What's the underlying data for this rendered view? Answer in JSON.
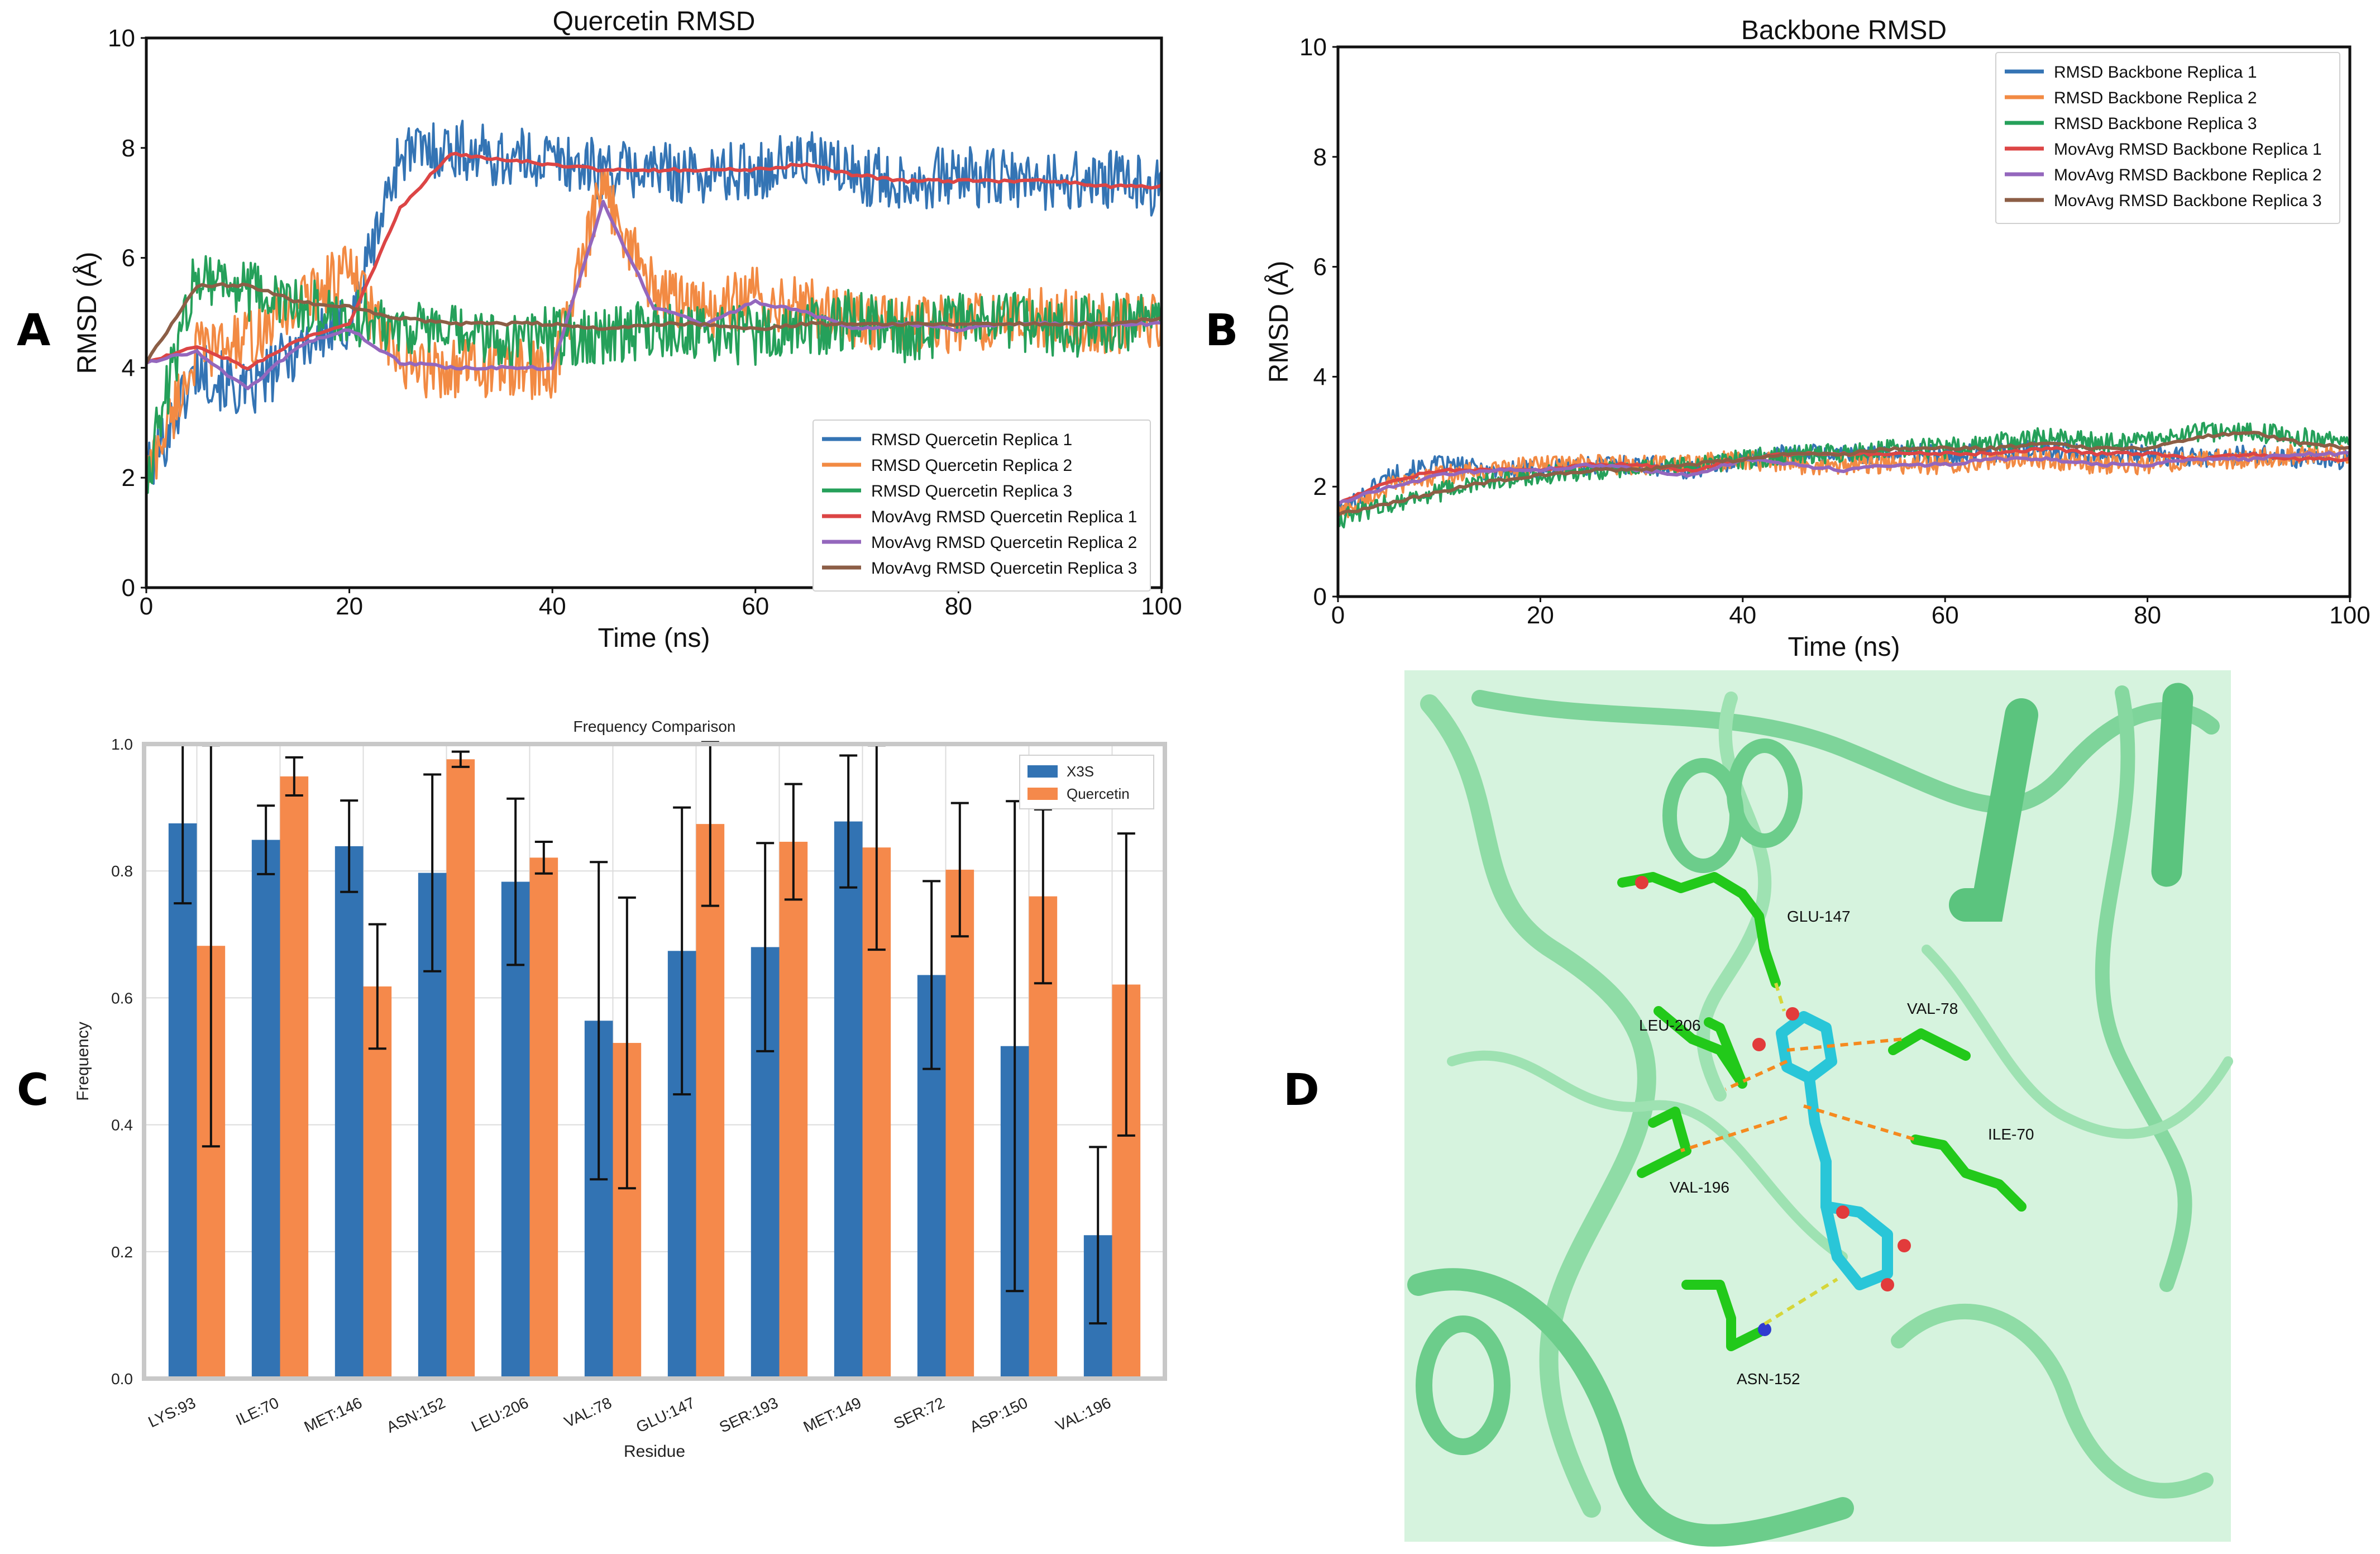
{
  "panels": {
    "A": "A",
    "B": "B",
    "C": "C",
    "D": "D"
  },
  "chart_data": [
    {
      "panel": "A",
      "type": "line",
      "title": "Quercetin  RMSD",
      "xlabel": "Time (ns)",
      "ylabel": "RMSD (Å)",
      "xlim": [
        0,
        100
      ],
      "ylim": [
        0,
        10
      ],
      "xticks": [
        "0",
        "20",
        "40",
        "60",
        "80",
        "100"
      ],
      "yticks": [
        "0",
        "2",
        "4",
        "6",
        "8",
        "10"
      ],
      "grid": false,
      "legend_position": "lower-right",
      "x": [
        0,
        5,
        10,
        15,
        20,
        25,
        30,
        35,
        40,
        45,
        50,
        55,
        60,
        65,
        70,
        75,
        80,
        85,
        90,
        95,
        100
      ],
      "series": [
        {
          "name": "RMSD Quercetin Replica 1",
          "color": "#3474b4",
          "values": [
            2.0,
            4.0,
            3.5,
            4.4,
            4.8,
            7.9,
            8.0,
            7.8,
            7.8,
            7.6,
            7.6,
            7.5,
            7.6,
            7.8,
            7.5,
            7.4,
            7.5,
            7.4,
            7.4,
            7.4,
            7.3
          ]
        },
        {
          "name": "RMSD Quercetin Replica 2",
          "color": "#f28a43",
          "values": [
            2.0,
            4.3,
            4.5,
            5.2,
            5.8,
            4.0,
            4.0,
            4.0,
            3.9,
            7.3,
            5.4,
            5.0,
            5.3,
            5.1,
            4.9,
            4.8,
            4.8,
            4.9,
            4.9,
            4.8,
            4.9
          ]
        },
        {
          "name": "RMSD Quercetin Replica 3",
          "color": "#25a05a",
          "values": [
            2.0,
            5.8,
            5.4,
            5.1,
            4.9,
            4.8,
            4.6,
            4.5,
            4.6,
            4.6,
            4.7,
            4.6,
            4.6,
            4.7,
            4.9,
            4.6,
            4.8,
            4.9,
            4.7,
            4.8,
            4.9
          ]
        },
        {
          "name": "MovAvg RMSD Quercetin Replica 1",
          "color": "#dc4545",
          "values": [
            4.1,
            4.4,
            4.0,
            4.5,
            4.8,
            6.9,
            7.9,
            7.8,
            7.7,
            7.6,
            7.6,
            7.6,
            7.6,
            7.7,
            7.5,
            7.4,
            7.4,
            7.4,
            7.4,
            7.3,
            7.3
          ]
        },
        {
          "name": "MovAvg RMSD Quercetin Replica 2",
          "color": "#9467bd",
          "values": [
            4.1,
            4.3,
            3.6,
            4.4,
            4.7,
            4.1,
            4.0,
            4.0,
            4.0,
            7.0,
            5.1,
            4.8,
            5.2,
            5.0,
            4.7,
            4.8,
            4.7,
            4.8,
            4.8,
            4.8,
            4.8
          ]
        },
        {
          "name": "MovAvg RMSD Quercetin Replica 3",
          "color": "#8c5e46",
          "values": [
            4.1,
            5.5,
            5.5,
            5.2,
            5.1,
            4.9,
            4.8,
            4.8,
            4.8,
            4.7,
            4.8,
            4.8,
            4.7,
            4.8,
            4.8,
            4.8,
            4.8,
            4.8,
            4.8,
            4.8,
            4.9
          ]
        }
      ]
    },
    {
      "panel": "B",
      "type": "line",
      "title": "Backbone RMSD",
      "xlabel": "Time (ns)",
      "ylabel": "RMSD (Å)",
      "xlim": [
        0,
        100
      ],
      "ylim": [
        0,
        10
      ],
      "xticks": [
        "0",
        "20",
        "40",
        "60",
        "80",
        "100"
      ],
      "yticks": [
        "0",
        "2",
        "4",
        "6",
        "8",
        "10"
      ],
      "grid": false,
      "legend_position": "upper-right",
      "x": [
        0,
        5,
        10,
        15,
        20,
        25,
        30,
        35,
        40,
        45,
        50,
        55,
        60,
        65,
        70,
        75,
        80,
        85,
        90,
        95,
        100
      ],
      "series": [
        {
          "name": "RMSD Backbone Replica 1",
          "color": "#3474b4",
          "values": [
            1.5,
            2.2,
            2.4,
            2.3,
            2.3,
            2.4,
            2.4,
            2.3,
            2.5,
            2.6,
            2.6,
            2.6,
            2.6,
            2.6,
            2.7,
            2.6,
            2.6,
            2.5,
            2.6,
            2.5,
            2.5
          ]
        },
        {
          "name": "RMSD Backbone Replica 2",
          "color": "#f28a43",
          "values": [
            1.5,
            2.0,
            2.2,
            2.3,
            2.4,
            2.4,
            2.4,
            2.4,
            2.5,
            2.4,
            2.4,
            2.4,
            2.4,
            2.5,
            2.5,
            2.4,
            2.4,
            2.5,
            2.5,
            2.6,
            2.6
          ]
        },
        {
          "name": "RMSD Backbone Replica 3",
          "color": "#25a05a",
          "values": [
            1.4,
            1.7,
            1.9,
            2.1,
            2.2,
            2.3,
            2.3,
            2.4,
            2.5,
            2.6,
            2.6,
            2.7,
            2.7,
            2.8,
            2.9,
            2.8,
            2.8,
            3.0,
            3.0,
            2.9,
            2.8
          ]
        },
        {
          "name": "MovAvg RMSD Backbone Replica 1",
          "color": "#dc4545",
          "values": [
            1.7,
            2.1,
            2.3,
            2.3,
            2.3,
            2.4,
            2.4,
            2.3,
            2.5,
            2.6,
            2.6,
            2.6,
            2.6,
            2.6,
            2.7,
            2.6,
            2.6,
            2.5,
            2.6,
            2.5,
            2.5
          ]
        },
        {
          "name": "MovAvg RMSD Backbone Replica 2",
          "color": "#9467bd",
          "values": [
            1.7,
            2.0,
            2.2,
            2.3,
            2.3,
            2.4,
            2.3,
            2.2,
            2.5,
            2.4,
            2.3,
            2.4,
            2.4,
            2.5,
            2.5,
            2.4,
            2.4,
            2.5,
            2.5,
            2.6,
            2.6
          ]
        },
        {
          "name": "MovAvg RMSD Backbone Replica 3",
          "color": "#8c5e46",
          "values": [
            1.5,
            1.7,
            1.9,
            2.1,
            2.2,
            2.3,
            2.3,
            2.4,
            2.5,
            2.6,
            2.6,
            2.7,
            2.7,
            2.7,
            2.8,
            2.7,
            2.7,
            2.9,
            3.0,
            2.8,
            2.7
          ]
        }
      ]
    },
    {
      "panel": "C",
      "type": "bar",
      "title": "Frequency Comparison",
      "xlabel": "Residue",
      "ylabel": "Frequency",
      "ylim": [
        0,
        1.0
      ],
      "yticks": [
        "0.0",
        "0.2",
        "0.4",
        "0.6",
        "0.8",
        "1.0"
      ],
      "grid": true,
      "legend_position": "upper-right",
      "categories": [
        "LYS:93",
        "ILE:70",
        "MET:146",
        "ASN:152",
        "LEU:206",
        "VAL:78",
        "GLU:147",
        "SER:193",
        "MET:149",
        "SER:72",
        "ASP:150",
        "VAL:196"
      ],
      "series": [
        {
          "name": "X3S",
          "color": "#3273b3",
          "values": [
            0.875,
            0.849,
            0.839,
            0.797,
            0.783,
            0.564,
            0.674,
            0.68,
            0.878,
            0.636,
            0.524,
            0.226
          ],
          "errors": [
            0.126,
            0.054,
            0.072,
            0.155,
            0.131,
            0.25,
            0.226,
            0.164,
            0.104,
            0.148,
            0.386,
            0.139
          ]
        },
        {
          "name": "Quercetin",
          "color": "#f5894b",
          "values": [
            0.682,
            0.949,
            0.618,
            0.976,
            0.821,
            0.529,
            0.874,
            0.846,
            0.837,
            0.802,
            0.76,
            0.621
          ],
          "errors": [
            0.316,
            0.03,
            0.098,
            0.012,
            0.025,
            0.229,
            0.129,
            0.091,
            0.161,
            0.105,
            0.137,
            0.238
          ]
        }
      ]
    }
  ],
  "molecule": {
    "residues": [
      "GLU-147",
      "LEU-206",
      "VAL-78",
      "ILE-70",
      "VAL-196",
      "ASN-152"
    ]
  }
}
